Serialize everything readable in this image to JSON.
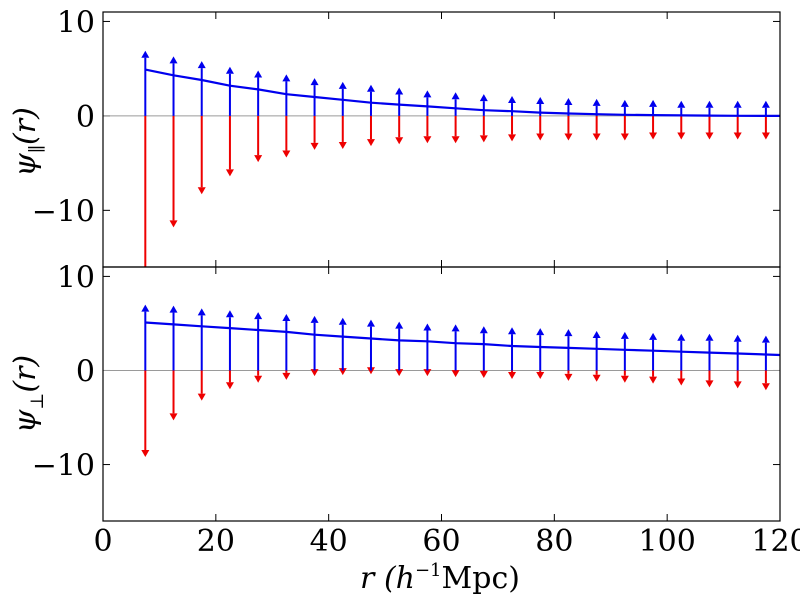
{
  "chart_data": {
    "type": "line",
    "x_axis": {
      "label": "r (h⁻¹Mpc)",
      "label_var": "r",
      "label_units_open": "(h",
      "label_units_sup": "−1",
      "label_units_close": "Mpc)",
      "xlim": [
        0,
        120
      ],
      "ticks": [
        0,
        20,
        40,
        60,
        80,
        100,
        120
      ],
      "tick_labels": [
        "0",
        "20",
        "40",
        "60",
        "80",
        "100",
        "120"
      ]
    },
    "panels": [
      {
        "ylabel": "ψ∥(r)",
        "ylabel_main": "ψ",
        "ylabel_sub": "∥",
        "ylabel_arg": "(r)",
        "ylim": [
          -16,
          11
        ],
        "yticks": [
          10,
          0,
          -10
        ],
        "ytick_labels": [
          "10",
          "0",
          "−10"
        ],
        "r": [
          7.5,
          12.5,
          17.5,
          22.5,
          27.5,
          32.5,
          37.5,
          42.5,
          47.5,
          52.5,
          57.5,
          62.5,
          67.5,
          72.5,
          77.5,
          82.5,
          87.5,
          92.5,
          97.5,
          102.5,
          107.5,
          112.5,
          117.5
        ],
        "blue_arrows": [
          6.9,
          6.3,
          5.8,
          5.2,
          4.8,
          4.4,
          4.0,
          3.6,
          3.3,
          3.0,
          2.7,
          2.5,
          2.3,
          2.1,
          2.0,
          1.9,
          1.8,
          1.7,
          1.7,
          1.6,
          1.6,
          1.6,
          1.6
        ],
        "red_arrows": [
          -16.5,
          -11.8,
          -8.3,
          -6.4,
          -4.9,
          -4.4,
          -3.6,
          -3.5,
          -3.2,
          -3.0,
          -2.9,
          -2.9,
          -2.8,
          -2.7,
          -2.6,
          -2.6,
          -2.6,
          -2.6,
          -2.5,
          -2.5,
          -2.5,
          -2.5,
          -2.5
        ],
        "curve": {
          "x": [
            7.5,
            12.5,
            17.5,
            22.5,
            27.5,
            32.5,
            37.5,
            42.5,
            47.5,
            52.5,
            57.5,
            62.5,
            67.5,
            72.5,
            77.5,
            82.5,
            87.5,
            92.5,
            97.5,
            102.5,
            107.5,
            112.5,
            120
          ],
          "y": [
            4.9,
            4.3,
            3.8,
            3.2,
            2.8,
            2.3,
            2.0,
            1.7,
            1.4,
            1.2,
            1.0,
            0.8,
            0.6,
            0.5,
            0.35,
            0.25,
            0.18,
            0.12,
            0.08,
            0.05,
            0.03,
            0.01,
            0.0
          ]
        }
      },
      {
        "ylabel": "ψ⊥(r)",
        "ylabel_main": "ψ",
        "ylabel_sub": "⊥",
        "ylabel_arg": "(r)",
        "ylim": [
          -16,
          11
        ],
        "yticks": [
          10,
          0,
          -10
        ],
        "ytick_labels": [
          "10",
          "0",
          "−10"
        ],
        "r": [
          7.5,
          12.5,
          17.5,
          22.5,
          27.5,
          32.5,
          37.5,
          42.5,
          47.5,
          52.5,
          57.5,
          62.5,
          67.5,
          72.5,
          77.5,
          82.5,
          87.5,
          92.5,
          97.5,
          102.5,
          107.5,
          112.5,
          117.5
        ],
        "blue_arrows": [
          7.0,
          6.9,
          6.6,
          6.4,
          6.2,
          6.0,
          5.8,
          5.6,
          5.4,
          5.2,
          5.0,
          4.9,
          4.7,
          4.6,
          4.5,
          4.4,
          4.2,
          4.1,
          4.0,
          3.9,
          3.9,
          3.8,
          3.7
        ],
        "red_arrows": [
          -9.2,
          -5.3,
          -3.2,
          -2.0,
          -1.3,
          -1.0,
          -0.6,
          -0.5,
          -0.4,
          -0.6,
          -0.6,
          -0.7,
          -0.8,
          -0.9,
          -0.9,
          -1.1,
          -1.2,
          -1.3,
          -1.4,
          -1.6,
          -1.8,
          -1.9,
          -2.1
        ],
        "curve": {
          "x": [
            7.5,
            12.5,
            17.5,
            22.5,
            27.5,
            32.5,
            37.5,
            42.5,
            47.5,
            52.5,
            57.5,
            62.5,
            67.5,
            72.5,
            77.5,
            82.5,
            87.5,
            92.5,
            97.5,
            102.5,
            107.5,
            112.5,
            120
          ],
          "y": [
            5.1,
            4.9,
            4.7,
            4.5,
            4.3,
            4.1,
            3.8,
            3.6,
            3.4,
            3.2,
            3.1,
            2.9,
            2.8,
            2.6,
            2.5,
            2.4,
            2.3,
            2.2,
            2.1,
            2.0,
            1.9,
            1.8,
            1.65
          ]
        }
      }
    ],
    "colors": {
      "curve": "#0000ee",
      "blue_arrow": "#0000ee",
      "red_arrow": "#ee0000"
    }
  }
}
